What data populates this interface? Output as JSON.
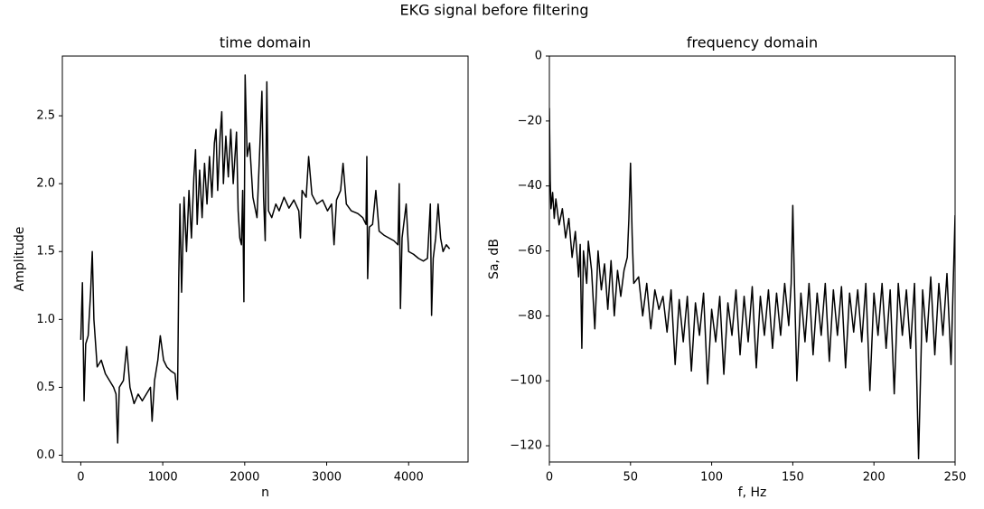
{
  "title": "EKG signal before filtering",
  "chart_data": [
    {
      "type": "line",
      "title": "time domain",
      "xlabel": "n",
      "ylabel": "Amplitude",
      "color": "#000000",
      "xlim": [
        -225,
        4725
      ],
      "ylim": [
        -0.05,
        2.94
      ],
      "xticks": [
        0,
        1000,
        2000,
        3000,
        4000
      ],
      "yticks": [
        {
          "value": 0,
          "label": "0.0"
        },
        0.5,
        {
          "value": 1,
          "label": "1.0"
        },
        1.5,
        {
          "value": 2,
          "label": "2.0"
        },
        2.5
      ],
      "x": [
        0,
        20,
        40,
        60,
        90,
        120,
        140,
        160,
        200,
        250,
        300,
        350,
        400,
        430,
        450,
        470,
        520,
        560,
        600,
        650,
        700,
        750,
        800,
        850,
        870,
        900,
        940,
        970,
        1010,
        1050,
        1100,
        1150,
        1180,
        1195,
        1210,
        1230,
        1260,
        1290,
        1320,
        1350,
        1380,
        1400,
        1420,
        1450,
        1480,
        1510,
        1540,
        1570,
        1600,
        1630,
        1650,
        1670,
        1700,
        1720,
        1740,
        1770,
        1800,
        1830,
        1860,
        1900,
        1920,
        1940,
        1960,
        1975,
        1990,
        2005,
        2030,
        2060,
        2100,
        2150,
        2180,
        2210,
        2230,
        2250,
        2270,
        2290,
        2330,
        2380,
        2420,
        2480,
        2540,
        2600,
        2660,
        2680,
        2700,
        2750,
        2780,
        2820,
        2880,
        2950,
        3010,
        3060,
        3090,
        3120,
        3170,
        3200,
        3240,
        3300,
        3380,
        3440,
        3480,
        3490,
        3500,
        3520,
        3560,
        3600,
        3640,
        3700,
        3760,
        3820,
        3870,
        3885,
        3900,
        3920,
        3970,
        4000,
        4060,
        4120,
        4180,
        4230,
        4265,
        4280,
        4300,
        4330,
        4360,
        4390,
        4420,
        4460,
        4500
      ],
      "values": [
        0.85,
        1.27,
        0.4,
        0.82,
        0.88,
        1.2,
        1.5,
        1.0,
        0.65,
        0.7,
        0.6,
        0.55,
        0.5,
        0.45,
        0.09,
        0.5,
        0.55,
        0.8,
        0.5,
        0.38,
        0.45,
        0.4,
        0.45,
        0.5,
        0.25,
        0.55,
        0.7,
        0.88,
        0.7,
        0.65,
        0.62,
        0.6,
        0.41,
        1.3,
        1.85,
        1.2,
        1.9,
        1.5,
        1.95,
        1.6,
        2.05,
        2.25,
        1.7,
        2.1,
        1.75,
        2.15,
        1.85,
        2.2,
        1.9,
        2.3,
        2.4,
        1.95,
        2.35,
        2.53,
        2.0,
        2.35,
        2.05,
        2.4,
        2.0,
        2.38,
        1.8,
        1.6,
        1.55,
        1.95,
        1.13,
        2.8,
        2.2,
        2.3,
        1.9,
        1.75,
        2.2,
        2.68,
        1.9,
        1.58,
        2.75,
        1.8,
        1.75,
        1.85,
        1.8,
        1.9,
        1.82,
        1.88,
        1.8,
        1.6,
        1.95,
        1.9,
        2.2,
        1.92,
        1.85,
        1.88,
        1.8,
        1.85,
        1.55,
        1.88,
        1.95,
        2.15,
        1.85,
        1.8,
        1.78,
        1.75,
        1.7,
        2.2,
        1.3,
        1.68,
        1.7,
        1.95,
        1.65,
        1.62,
        1.6,
        1.58,
        1.55,
        2.0,
        1.08,
        1.6,
        1.85,
        1.5,
        1.48,
        1.45,
        1.43,
        1.45,
        1.85,
        1.03,
        1.45,
        1.6,
        1.85,
        1.6,
        1.5,
        1.55,
        1.52
      ]
    },
    {
      "type": "line",
      "title": "frequency domain",
      "xlabel": "f, Hz",
      "ylabel": "Sa, dB",
      "color": "#000000",
      "xlim": [
        0,
        250
      ],
      "ylim": [
        -125,
        0
      ],
      "xticks": [
        0,
        50,
        100,
        150,
        200,
        250
      ],
      "yticks": [
        0,
        {
          "value": -20,
          "label": "−20"
        },
        {
          "value": -40,
          "label": "−40"
        },
        {
          "value": -60,
          "label": "−60"
        },
        {
          "value": -80,
          "label": "−80"
        },
        {
          "value": -100,
          "label": "−100"
        },
        {
          "value": -120,
          "label": "−120"
        }
      ],
      "x": [
        0,
        0.5,
        1,
        2,
        3,
        4,
        6,
        8,
        10,
        12,
        14,
        16,
        18,
        19,
        20,
        21,
        23,
        24,
        26,
        28,
        30,
        32,
        34,
        36,
        38,
        40,
        42,
        44,
        46,
        48,
        49,
        50,
        51,
        52,
        55,
        57.5,
        60,
        62.5,
        65,
        67.5,
        70,
        72.5,
        75,
        77.5,
        80,
        82.5,
        85,
        87.5,
        90,
        92.5,
        95,
        97.5,
        100,
        102.5,
        105,
        107.5,
        110,
        112.5,
        115,
        117.5,
        120,
        122.5,
        125,
        127.5,
        130,
        132.5,
        135,
        137.5,
        140,
        142.5,
        145,
        147.5,
        149,
        150,
        151,
        152.5,
        155,
        157.5,
        160,
        162.5,
        165,
        167.5,
        170,
        172.5,
        175,
        177.5,
        180,
        182.5,
        185,
        187.5,
        190,
        192.5,
        195,
        197.5,
        200,
        202.5,
        205,
        207.5,
        210,
        212.5,
        215,
        217.5,
        220,
        222.5,
        225,
        227.5,
        230,
        232.5,
        235,
        237.5,
        240,
        242.5,
        245,
        247.5,
        250
      ],
      "values": [
        -16,
        -38,
        -47,
        -42,
        -50,
        -44,
        -52,
        -47,
        -56,
        -50,
        -62,
        -54,
        -68,
        -58,
        -90,
        -60,
        -70,
        -57,
        -66,
        -84,
        -60,
        -72,
        -64,
        -78,
        -63,
        -80,
        -66,
        -74,
        -66,
        -62,
        -50,
        -33,
        -55,
        -70,
        -68,
        -80,
        -70,
        -84,
        -72,
        -78,
        -74,
        -85,
        -72,
        -95,
        -75,
        -88,
        -74,
        -97,
        -76,
        -86,
        -73,
        -101,
        -78,
        -88,
        -74,
        -98,
        -76,
        -86,
        -72,
        -92,
        -74,
        -88,
        -71,
        -96,
        -74,
        -86,
        -72,
        -90,
        -73,
        -86,
        -70,
        -83,
        -70,
        -46,
        -70,
        -100,
        -73,
        -88,
        -70,
        -92,
        -73,
        -86,
        -70,
        -94,
        -72,
        -86,
        -71,
        -96,
        -73,
        -85,
        -72,
        -88,
        -70,
        -103,
        -73,
        -86,
        -70,
        -90,
        -72,
        -104,
        -70,
        -86,
        -72,
        -90,
        -70,
        -124,
        -72,
        -88,
        -68,
        -92,
        -70,
        -86,
        -67,
        -95,
        -49
      ]
    }
  ]
}
